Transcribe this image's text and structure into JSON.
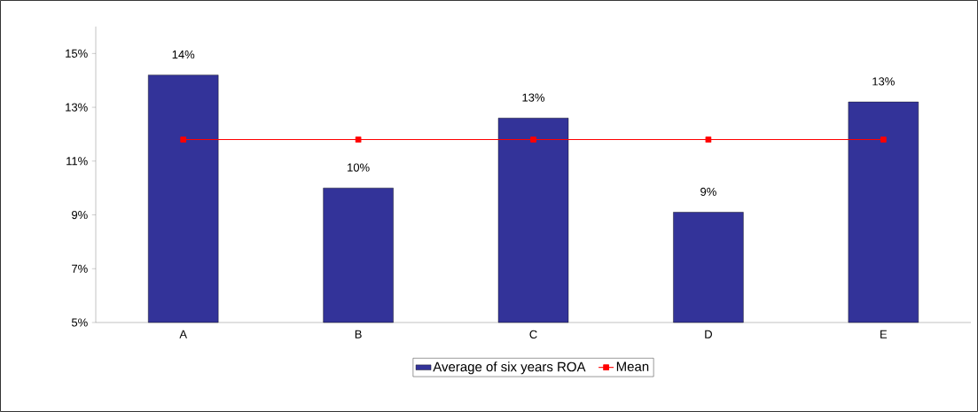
{
  "chart_data": {
    "type": "bar",
    "categories": [
      "A",
      "B",
      "C",
      "D",
      "E"
    ],
    "series": [
      {
        "name": "Average of six years ROA",
        "color": "#333399",
        "values": [
          14.2,
          10.0,
          12.6,
          9.1,
          13.2
        ],
        "value_labels": [
          "14%",
          "10%",
          "13%",
          "9%",
          "13%"
        ]
      },
      {
        "name": "Mean",
        "type": "line",
        "color": "#ff0000",
        "marker": "square",
        "values": [
          11.8,
          11.8,
          11.8,
          11.8,
          11.8
        ]
      }
    ],
    "ylim": [
      5,
      16
    ],
    "yticks": [
      {
        "value": 5,
        "label": "5%"
      },
      {
        "value": 7,
        "label": "7%"
      },
      {
        "value": 9,
        "label": "9%"
      },
      {
        "value": 11,
        "label": "11%"
      },
      {
        "value": 13,
        "label": "13%"
      },
      {
        "value": 15,
        "label": "15%"
      }
    ],
    "legend": "bottom"
  }
}
